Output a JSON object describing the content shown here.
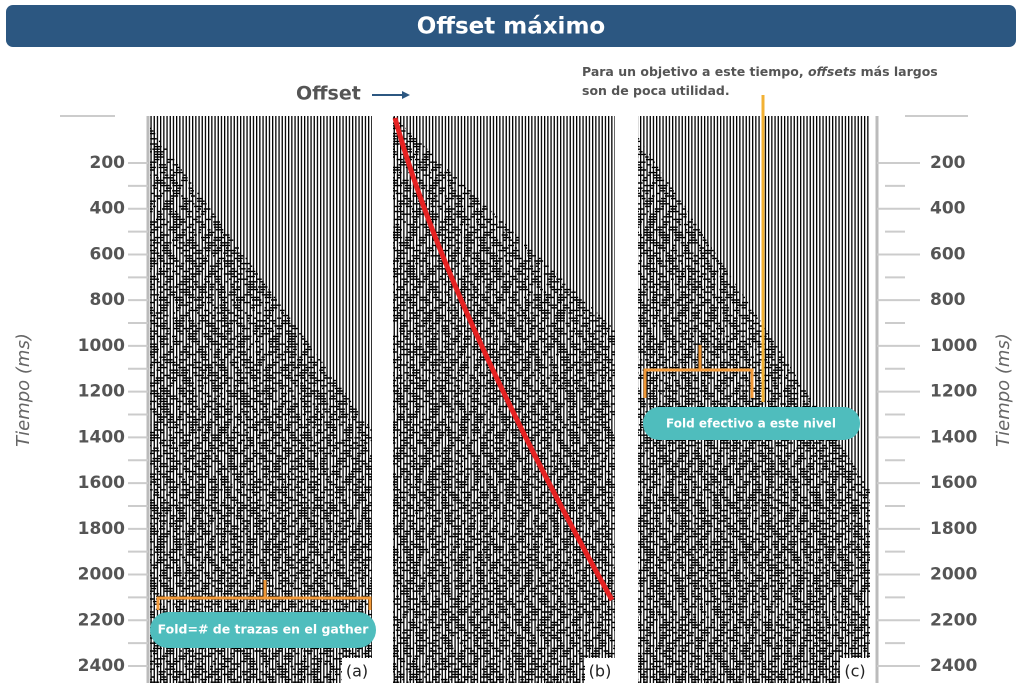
{
  "header": {
    "title": "Offset máximo"
  },
  "offset_label": "Offset",
  "note": {
    "part1": "Para un objetivo a este tiempo,",
    "italic": "offsets",
    "part2": "más largos",
    "line2": "son de poca utilidad."
  },
  "axis": {
    "label": "Tiempo (ms)",
    "ticks": [
      "200",
      "400",
      "600",
      "800",
      "1000",
      "1200",
      "1400",
      "1600",
      "1800",
      "2000",
      "2200",
      "2400"
    ]
  },
  "panels": [
    {
      "label": "(a)"
    },
    {
      "label": "(b)"
    },
    {
      "label": "(c)"
    }
  ],
  "callouts": [
    {
      "text": "Fold=# de trazas en el gather"
    },
    {
      "text": "Fold efectivo a este nivel"
    }
  ]
}
